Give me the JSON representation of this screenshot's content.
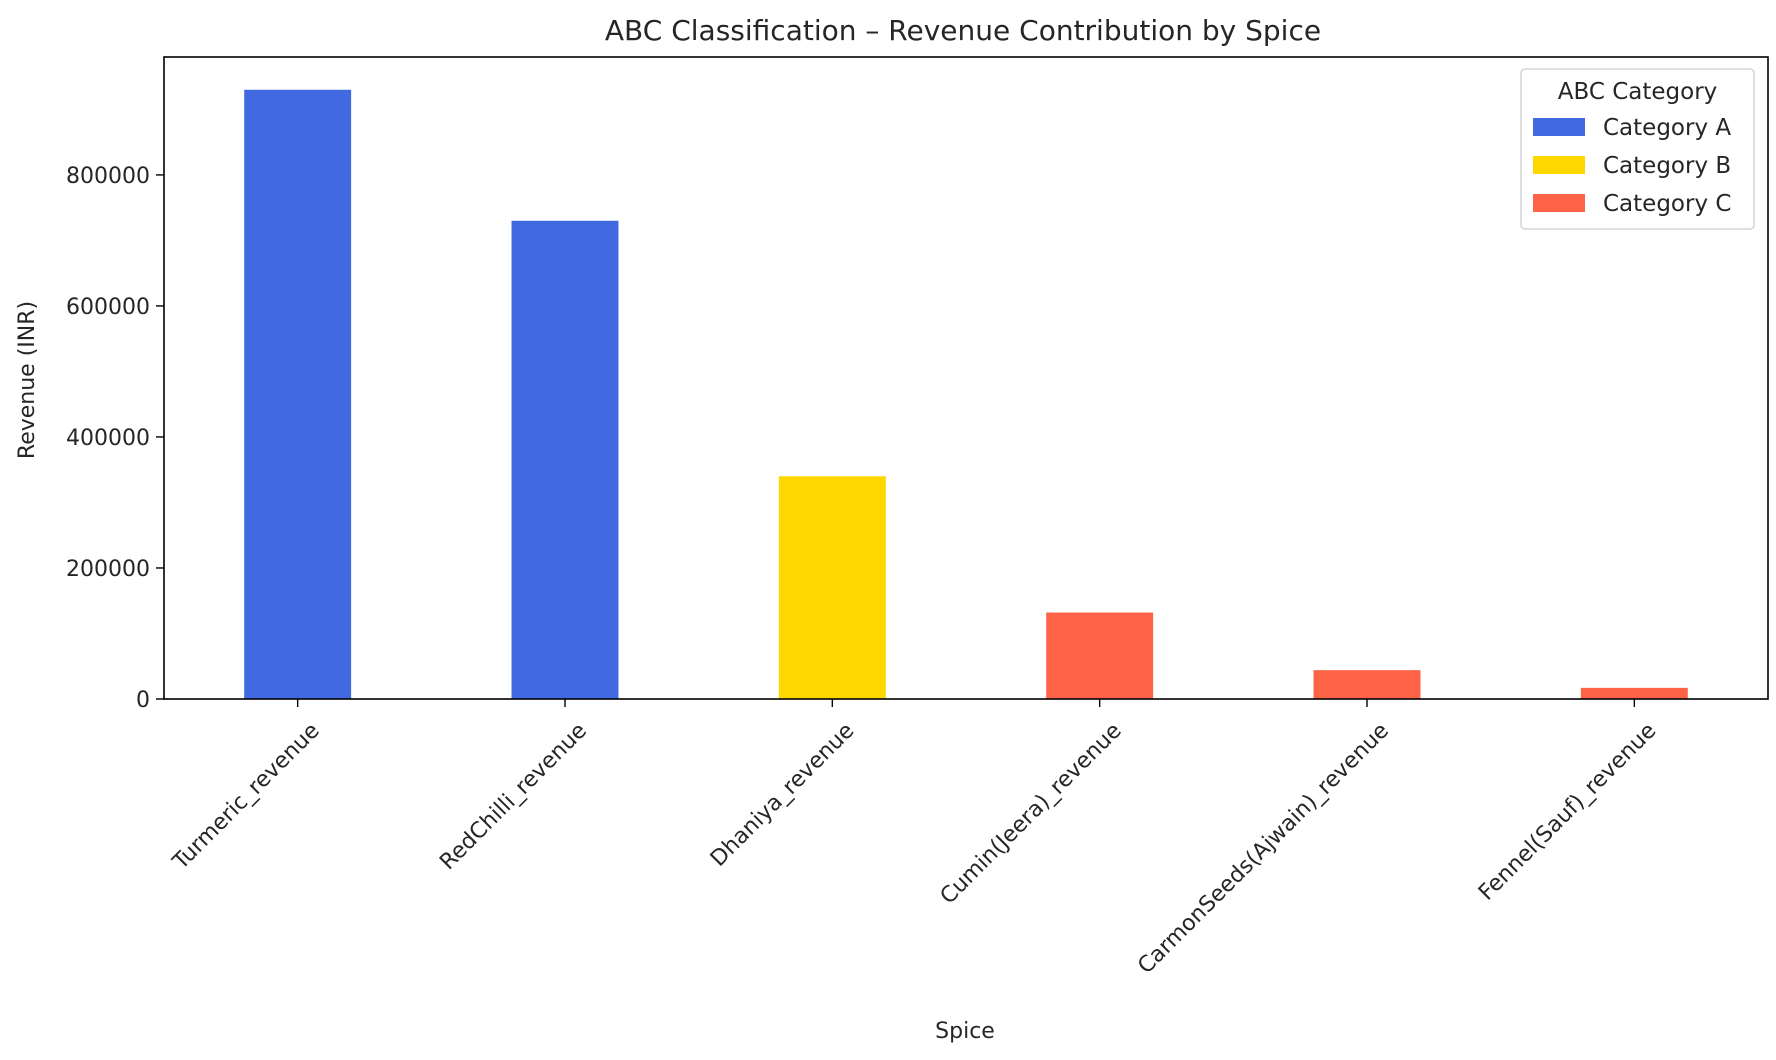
{
  "chart_data": {
    "type": "bar",
    "title": "ABC Classification – Revenue Contribution by Spice",
    "xlabel": "Spice",
    "ylabel": "Revenue (INR)",
    "categories": [
      "Turmeric_revenue",
      "RedChilli_revenue",
      "Dhaniya_revenue",
      "Cumin(Jeera)_revenue",
      "CarmonSeeds(Ajwain)_revenue",
      "Fennel(Sauf)_revenue"
    ],
    "values": [
      930000,
      730000,
      340000,
      132000,
      44000,
      17000
    ],
    "bar_categories": [
      "Category A",
      "Category A",
      "Category B",
      "Category C",
      "Category C",
      "Category C"
    ],
    "ylim": [
      0,
      980000
    ],
    "yticks": [
      0,
      200000,
      400000,
      600000,
      800000
    ],
    "ytick_labels": [
      "0",
      "200000",
      "400000",
      "600000",
      "800000"
    ],
    "grid": false,
    "legend": {
      "title": "ABC Category",
      "placement": "top-right",
      "entries": [
        {
          "label": "Category A",
          "color": "#4169E1"
        },
        {
          "label": "Category B",
          "color": "#FFD700"
        },
        {
          "label": "Category C",
          "color": "#FF6347"
        }
      ]
    },
    "colors": {
      "Category A": "#4169E1",
      "Category B": "#FFD700",
      "Category C": "#FF6347"
    }
  }
}
